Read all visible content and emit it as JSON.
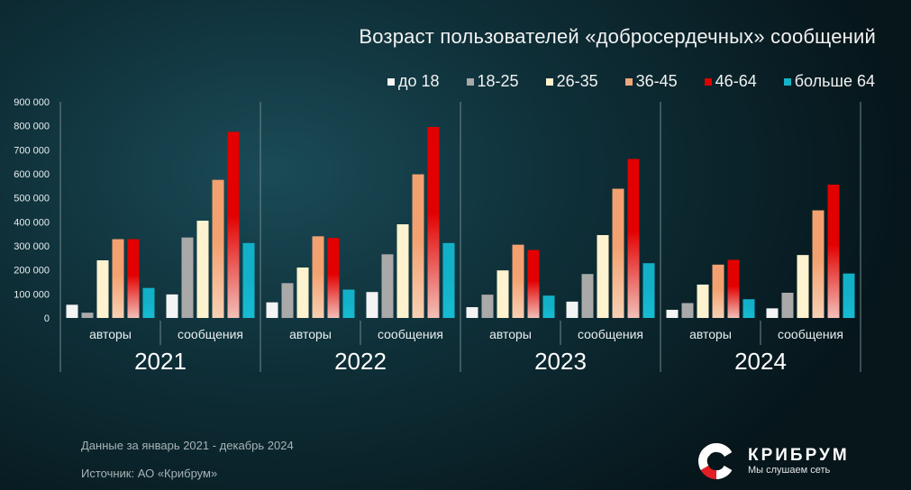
{
  "chart_data": {
    "type": "bar",
    "title": "Возраст пользователей «добросердечных» сообщений",
    "ylim": [
      0,
      900000
    ],
    "yticks": [
      "0",
      "100 000",
      "200 000",
      "300 000",
      "400 000",
      "500 000",
      "600 000",
      "700 000",
      "800 000",
      "900 000"
    ],
    "grid": false,
    "legend_position": "top-right",
    "series": [
      {
        "name": "до 18",
        "color": "#f4f4f4"
      },
      {
        "name": "18-25",
        "color": "#a9a9a9"
      },
      {
        "name": "26-35",
        "color": "#fff3cf"
      },
      {
        "name": "36-45",
        "color": "#f0a77c"
      },
      {
        "name": "46-64",
        "color": "#e00000"
      },
      {
        "name": "больше 64",
        "color": "#16b3c9"
      }
    ],
    "groups": [
      {
        "year": "2021",
        "categories": [
          {
            "label": "авторы",
            "values": [
              55000,
              22000,
              240000,
              328000,
              328000,
              125000
            ]
          },
          {
            "label": "сообщения",
            "values": [
              98000,
              335000,
              405000,
              575000,
              775000,
              312000
            ]
          }
        ]
      },
      {
        "year": "2022",
        "categories": [
          {
            "label": "авторы",
            "values": [
              65000,
              145000,
              210000,
              340000,
              333000,
              118000
            ]
          },
          {
            "label": "сообщения",
            "values": [
              108000,
              265000,
              390000,
              598000,
              795000,
              312000
            ]
          }
        ]
      },
      {
        "year": "2023",
        "categories": [
          {
            "label": "авторы",
            "values": [
              45000,
              97000,
              198000,
              305000,
              283000,
              93000
            ]
          },
          {
            "label": "сообщения",
            "values": [
              68000,
              183000,
              345000,
              538000,
              662000,
              228000
            ]
          }
        ]
      },
      {
        "year": "2024",
        "categories": [
          {
            "label": "авторы",
            "values": [
              34000,
              62000,
              139000,
              222000,
              242000,
              78000
            ]
          },
          {
            "label": "сообщения",
            "values": [
              40000,
              105000,
              262000,
              448000,
              555000,
              185000
            ]
          }
        ]
      }
    ]
  },
  "footer": {
    "period": "Данные за январь 2021 - декабрь 2024",
    "source": "Источник: АО «Крибрум»"
  },
  "logo": {
    "name": "КРИБРУМ",
    "tagline": "Мы слушаем сеть",
    "icon": "kribrum-logo-icon"
  }
}
